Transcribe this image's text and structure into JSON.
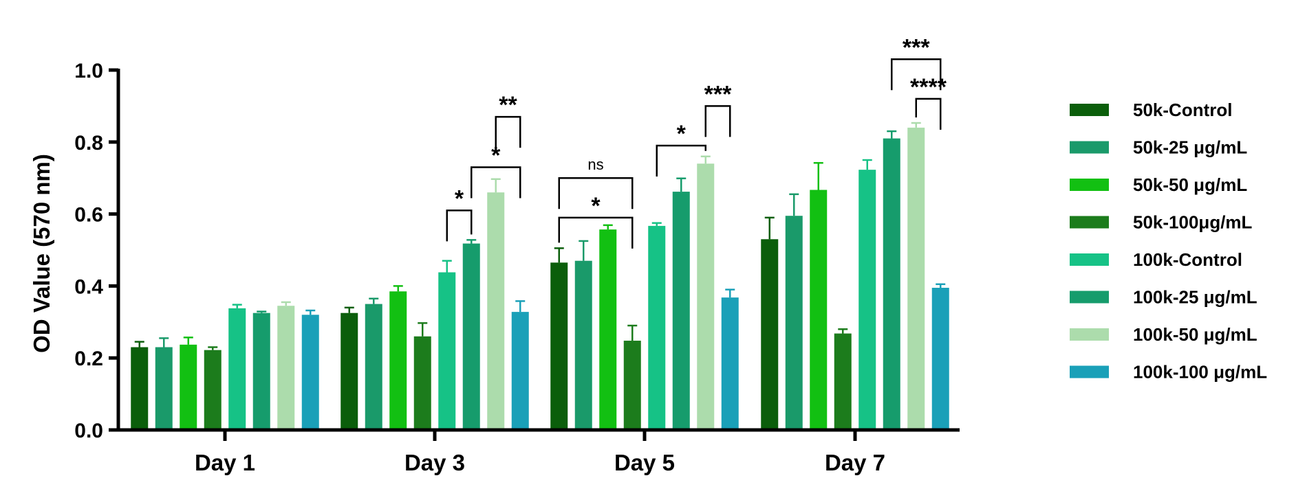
{
  "chart_data": {
    "type": "bar",
    "title": "",
    "xlabel": "",
    "ylabel": "OD Value (570 nm)",
    "ylim": [
      0,
      1.0
    ],
    "yticks": [
      "0.0",
      "0.2",
      "0.4",
      "0.6",
      "0.8",
      "1.0"
    ],
    "categories": [
      "Day 1",
      "Day 3",
      "Day 5",
      "Day 7"
    ],
    "series": [
      {
        "name": "50k-Control",
        "color": "#0b5e0b",
        "values": [
          0.23,
          0.325,
          0.465,
          0.53
        ],
        "errors": [
          0.015,
          0.015,
          0.04,
          0.06
        ]
      },
      {
        "name": "50k-25 μg/mL",
        "color": "#1a9a6a",
        "values": [
          0.23,
          0.35,
          0.47,
          0.595
        ],
        "errors": [
          0.025,
          0.015,
          0.055,
          0.06
        ]
      },
      {
        "name": "50k-50 μg/mL",
        "color": "#12c012",
        "values": [
          0.237,
          0.385,
          0.557,
          0.667
        ],
        "errors": [
          0.02,
          0.015,
          0.012,
          0.075
        ]
      },
      {
        "name": "50k-100μg/mL",
        "color": "#1c7c1c",
        "values": [
          0.222,
          0.26,
          0.248,
          0.268
        ],
        "errors": [
          0.008,
          0.037,
          0.042,
          0.012
        ]
      },
      {
        "name": "100k-Control",
        "color": "#16c286",
        "values": [
          0.338,
          0.438,
          0.567,
          0.723
        ],
        "errors": [
          0.01,
          0.032,
          0.008,
          0.027
        ]
      },
      {
        "name": "100k-25 μg/mL",
        "color": "#169c6c",
        "values": [
          0.325,
          0.518,
          0.662,
          0.81
        ],
        "errors": [
          0.004,
          0.01,
          0.037,
          0.02
        ]
      },
      {
        "name": "100k-50 μg/mL",
        "color": "#acdcac",
        "values": [
          0.345,
          0.66,
          0.74,
          0.84
        ],
        "errors": [
          0.01,
          0.037,
          0.02,
          0.013
        ]
      },
      {
        "name": "100k-100 μg/mL",
        "color": "#1aa0b8",
        "values": [
          0.32,
          0.328,
          0.368,
          0.395
        ],
        "errors": [
          0.012,
          0.03,
          0.022,
          0.01
        ]
      }
    ],
    "significance": [
      {
        "day": 1,
        "from": 4,
        "to": 5,
        "label": "*",
        "y": 0.61
      },
      {
        "day": 1,
        "from": 5,
        "to": 7,
        "label": "*",
        "y": 0.73
      },
      {
        "day": 1,
        "from": 6,
        "to": 7,
        "label": "**",
        "y": 0.87
      },
      {
        "day": 2,
        "from": 0,
        "to": 3,
        "label": "ns",
        "y": 0.7
      },
      {
        "day": 2,
        "from": 0,
        "to": 3,
        "label": "*",
        "y": 0.59
      },
      {
        "day": 2,
        "from": 4,
        "to": 6,
        "label": "*",
        "y": 0.79
      },
      {
        "day": 2,
        "from": 6,
        "to": 7,
        "label": "***",
        "y": 0.9
      },
      {
        "day": 3,
        "from": 5,
        "to": 7,
        "label": "***",
        "y": 1.03
      },
      {
        "day": 3,
        "from": 6,
        "to": 7,
        "label": "****",
        "y": 0.92
      }
    ],
    "legend_position": "right"
  }
}
